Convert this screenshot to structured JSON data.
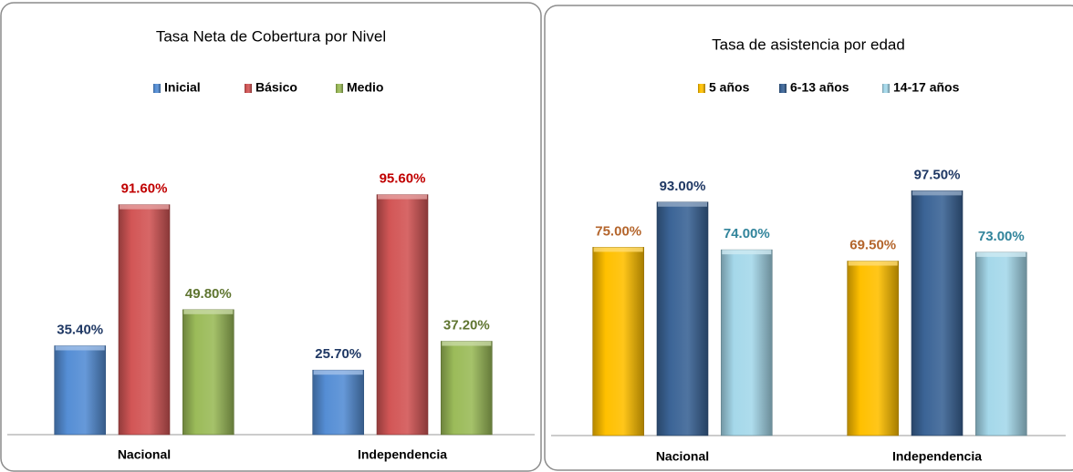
{
  "chart_data": [
    {
      "type": "bar",
      "title": "Tasa Neta de Cobertura por Nivel",
      "categories": [
        "Nacional",
        "Independencia"
      ],
      "series": [
        {
          "name": "Inicial",
          "color": "#558ed5",
          "label_color": "#1f3864",
          "values": [
            35.4,
            25.7
          ],
          "value_labels": [
            "35.40%",
            "25.70%"
          ]
        },
        {
          "name": "Básico",
          "color": "#d25656",
          "label_color": "#c00000",
          "values": [
            91.6,
            95.6
          ],
          "value_labels": [
            "91.60%",
            "95.60%"
          ]
        },
        {
          "name": "Medio",
          "color": "#9bbb59",
          "label_color": "#5f7530",
          "values": [
            49.8,
            37.2
          ],
          "value_labels": [
            "49.80%",
            "37.20%"
          ]
        }
      ]
    },
    {
      "type": "bar",
      "title": "Tasa de asistencia por edad",
      "categories": [
        "Nacional",
        "Independencia"
      ],
      "series": [
        {
          "name": "5 años",
          "color": "#ffc000",
          "label_color": "#b4652c",
          "values": [
            75.0,
            69.5
          ],
          "value_labels": [
            "75.00%",
            "69.50%"
          ]
        },
        {
          "name": "6-13 años",
          "color": "#3b6496",
          "label_color": "#1f3864",
          "values": [
            93.0,
            97.5
          ],
          "value_labels": [
            "93.00%",
            "97.50%"
          ]
        },
        {
          "name": "14-17 años",
          "color": "#a5d8ea",
          "label_color": "#31849b",
          "values": [
            74.0,
            73.0
          ],
          "value_labels": [
            "74.00%",
            "73.00%"
          ]
        }
      ]
    }
  ]
}
